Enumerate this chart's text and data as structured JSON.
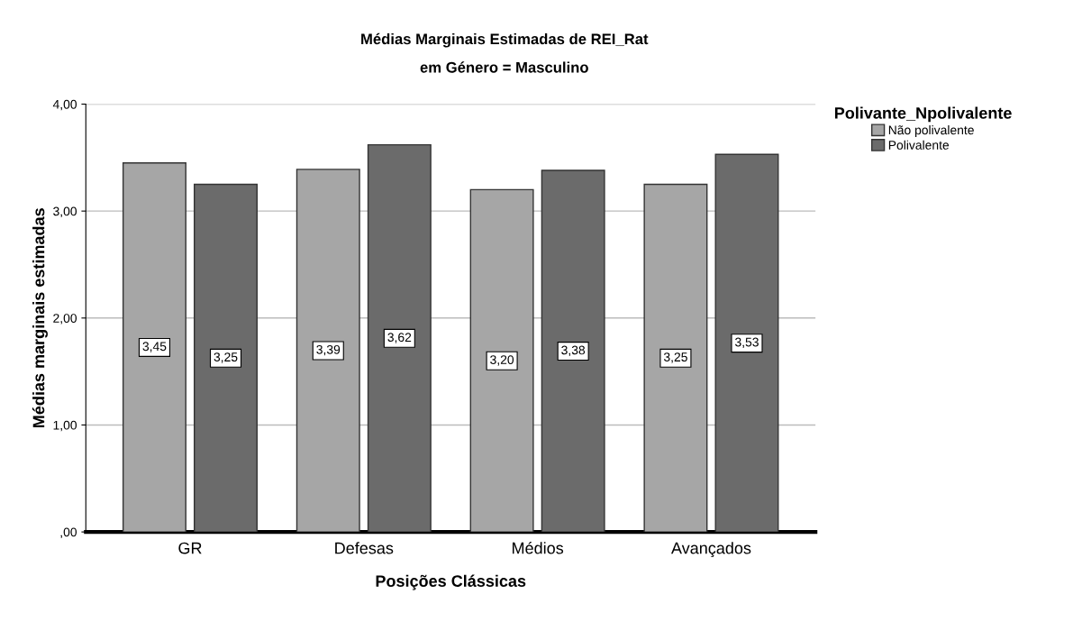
{
  "chart_data": {
    "type": "bar",
    "title": "Médias Marginais Estimadas de REI_Rat",
    "subtitle": "em Género = Masculino",
    "xlabel": "Posições Clássicas",
    "ylabel": "Médias marginais estimadas",
    "legend_title": "Polivante_Npolivalente",
    "categories": [
      "GR",
      "Defesas",
      "Médios",
      "Avançados"
    ],
    "series": [
      {
        "name": "Não polivalente",
        "color": "#a6a6a6",
        "values": [
          3.45,
          3.39,
          3.2,
          3.25
        ],
        "value_labels": [
          "3,45",
          "3,39",
          "3,20",
          "3,25"
        ]
      },
      {
        "name": "Polivalente",
        "color": "#6b6b6b",
        "values": [
          3.25,
          3.62,
          3.38,
          3.53
        ],
        "value_labels": [
          "3,25",
          "3,62",
          "3,38",
          "3,53"
        ]
      }
    ],
    "ylim": [
      0,
      4
    ],
    "yticks": [
      {
        "value": 0,
        "label": ",00"
      },
      {
        "value": 1,
        "label": "1,00"
      },
      {
        "value": 2,
        "label": "2,00"
      },
      {
        "value": 3,
        "label": "3,00"
      },
      {
        "value": 4,
        "label": "4,00"
      }
    ],
    "grid": "y",
    "legend": "top right"
  }
}
